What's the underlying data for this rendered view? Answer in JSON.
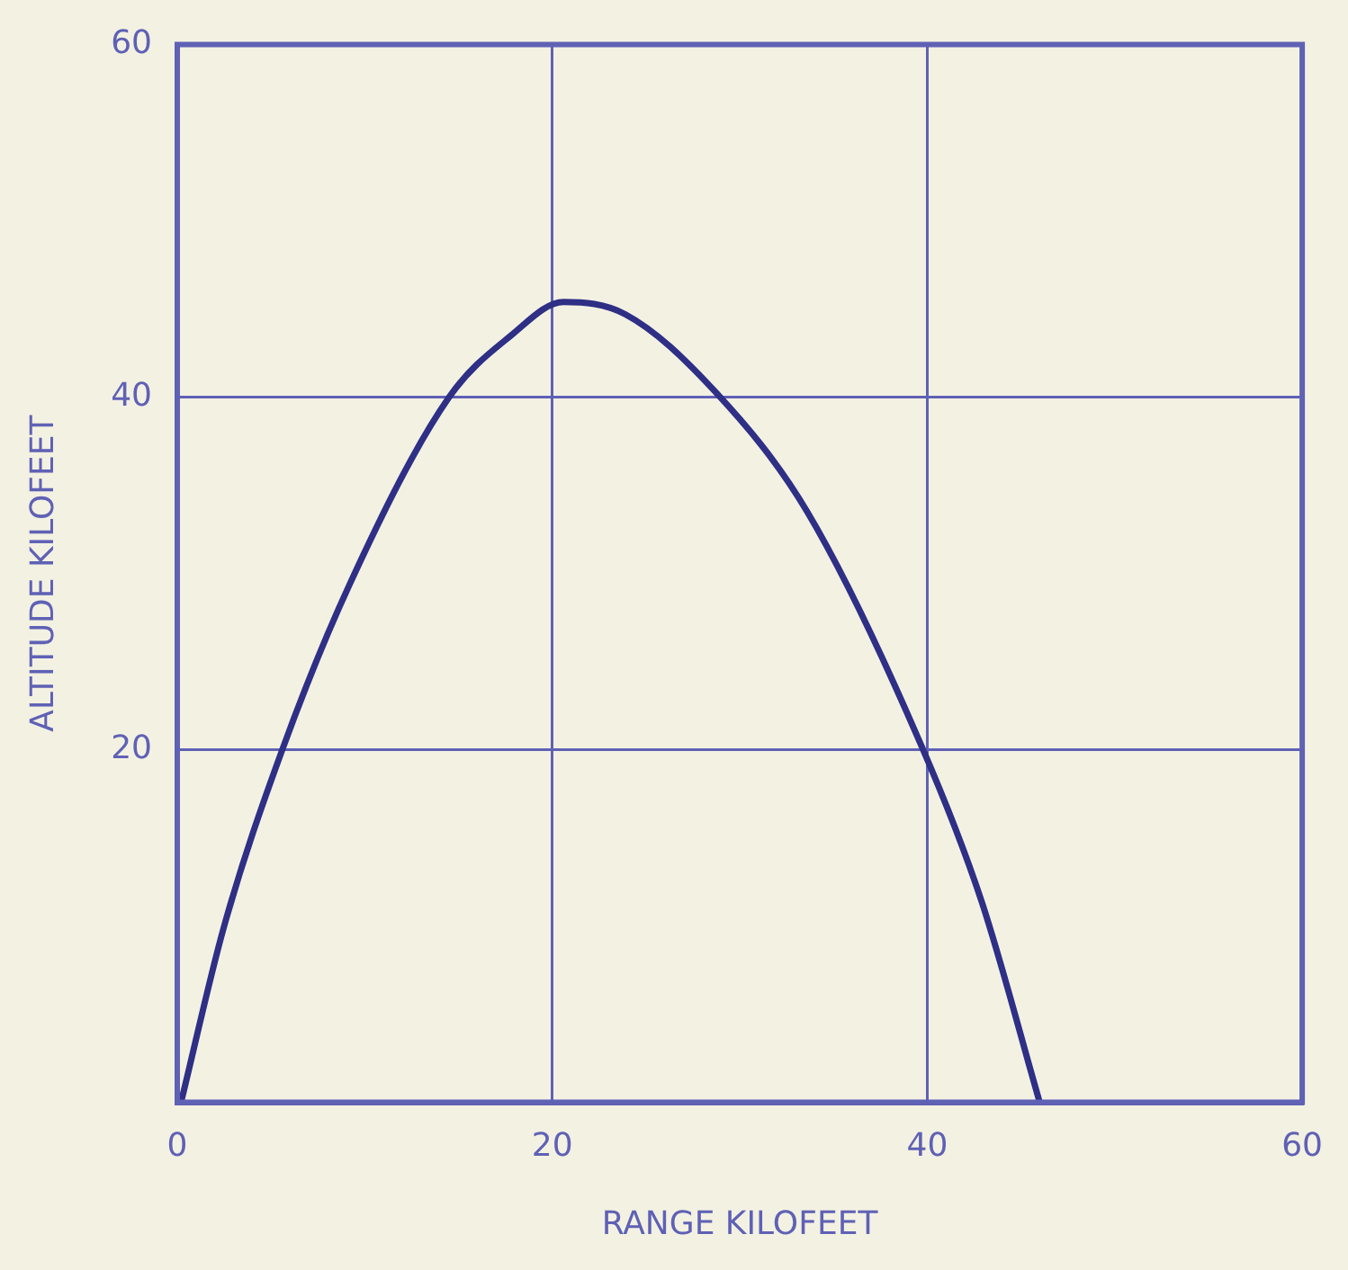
{
  "chart_data": {
    "type": "line",
    "xlabel": "RANGE KILOFEET",
    "ylabel": "ALTITUDE KILOFEET",
    "x": [
      0.2,
      2.5,
      5.6,
      9.2,
      14.5,
      17.8,
      20.6,
      23.9,
      28.7,
      33.6,
      39.7,
      42.9,
      46
    ],
    "series": [
      {
        "color": "#2e2f85",
        "values": [
          0,
          10,
          20,
          29.4,
          40,
          43.5,
          45.4,
          44.7,
          40.3,
          33.5,
          20.2,
          11.4,
          0
        ]
      }
    ],
    "xlim": [
      0,
      60
    ],
    "ylim": [
      0,
      60
    ],
    "xticks": [
      0,
      20,
      40,
      60
    ],
    "yticks": [
      {
        "value": 0,
        "label": null
      },
      20,
      40,
      60
    ],
    "grid": true,
    "legend": false,
    "marker": "none",
    "line_style": "solid"
  }
}
